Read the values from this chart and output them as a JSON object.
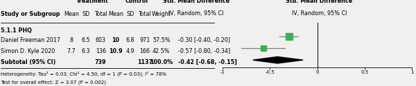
{
  "subgroup_label": "5.1.1 PHQ",
  "studies": [
    {
      "name": "Daniel Freeman 2017",
      "t_mean": "8",
      "t_sd": "6.5",
      "t_total": "603",
      "c_mean": "10",
      "c_sd": "6.8",
      "c_total": "971",
      "weight": "57.5%",
      "smd": -0.3,
      "ci_low": -0.4,
      "ci_high": -0.2,
      "smd_text": "-0.30 [-0.40, -0.20]"
    },
    {
      "name": "Simon D. Kyle 2020",
      "t_mean": "7.7",
      "t_sd": "6.3",
      "t_total": "136",
      "c_mean": "10.9",
      "c_sd": "4.9",
      "c_total": "166",
      "weight": "42.5%",
      "smd": -0.57,
      "ci_low": -0.8,
      "ci_high": -0.34,
      "smd_text": "-0.57 [-0.80, -0.34]"
    }
  ],
  "subtotal": {
    "t_total": "739",
    "c_total": "1137",
    "weight": "100.0%",
    "smd": -0.42,
    "ci_low": -0.68,
    "ci_high": -0.15,
    "smd_text": "-0.42 [-0.68, -0.15]"
  },
  "heterogeneity_text": "Heterogeneity: Tau² = 0.03; Chi² = 4.50, df = 1 (P = 0.03); I² = 78%",
  "overall_text": "Test for overall effect: Z = 3.07 (P = 0.002)",
  "axis_min": -1,
  "axis_max": 1,
  "axis_ticks": [
    -1,
    -0.5,
    0,
    0.5,
    1
  ],
  "marker_color": "#3cb054",
  "diamond_color": "#000000",
  "line_color": "#808080",
  "bg_color": "#f0f0f0",
  "text_color": "#000000",
  "fontsize": 5.8
}
